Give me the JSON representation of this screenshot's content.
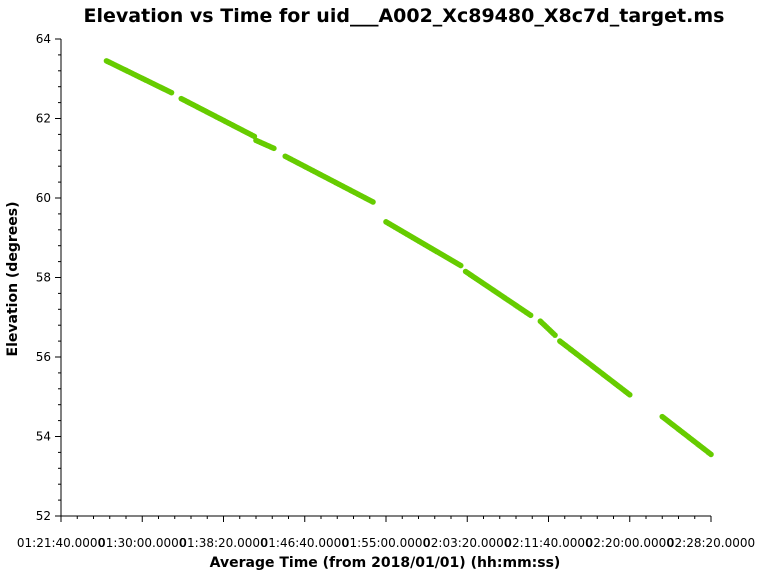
{
  "chart_data": {
    "type": "scatter",
    "title": "Elevation vs Time for uid___A002_Xc89480_X8c7d_target.ms",
    "xlabel": "Average Time (from 2018/01/01) (hh:mm:ss)",
    "ylabel": "Elevation (degrees)",
    "xlim": [
      "01:21:40",
      "02:28:20"
    ],
    "ylim": [
      52,
      64
    ],
    "y_ticks": [
      52,
      54,
      56,
      58,
      60,
      62,
      64
    ],
    "x_ticks": [
      "01:21:40.0000",
      "01:30:00.0000",
      "01:38:20.0000",
      "01:46:40.0000",
      "01:55:00.0000",
      "02:03:20.0000",
      "02:11:40.0000",
      "02:20:00.0000",
      "02:28:20.0000"
    ],
    "x_tick_labels": [
      "01:21:40.0000",
      "01:30:00.0000",
      "01:38:20.0000",
      "01:46:40.0000",
      "01:55:00.0000",
      "02:03:20.0000",
      "02:11:40.0000",
      "02:20:00.0000",
      "02:28:20.0000"
    ],
    "minor_x_ticks_per_major": 4,
    "minor_y_ticks_per_major": 4,
    "grid": false,
    "marker_color": "#66cc00",
    "series": [
      {
        "segments": [
          {
            "start": [
              "01:26:20",
              63.45
            ],
            "end": [
              "01:33:00",
              62.65
            ]
          },
          {
            "start": [
              "01:34:00",
              62.5
            ],
            "end": [
              "01:41:30",
              61.55
            ]
          },
          {
            "start": [
              "01:41:40",
              61.45
            ],
            "end": [
              "01:43:30",
              61.25
            ]
          },
          {
            "start": [
              "01:44:40",
              61.05
            ],
            "end": [
              "01:53:40",
              59.9
            ]
          },
          {
            "start": [
              "01:55:00",
              59.4
            ],
            "end": [
              "02:02:40",
              58.3
            ]
          },
          {
            "start": [
              "02:03:10",
              58.15
            ],
            "end": [
              "02:09:50",
              57.05
            ]
          },
          {
            "start": [
              "02:10:50",
              56.9
            ],
            "end": [
              "02:12:20",
              56.55
            ]
          },
          {
            "start": [
              "02:12:50",
              56.4
            ],
            "end": [
              "02:20:00",
              55.05
            ]
          },
          {
            "start": [
              "02:23:20",
              54.5
            ],
            "end": [
              "02:28:20",
              53.55
            ]
          }
        ]
      }
    ]
  }
}
